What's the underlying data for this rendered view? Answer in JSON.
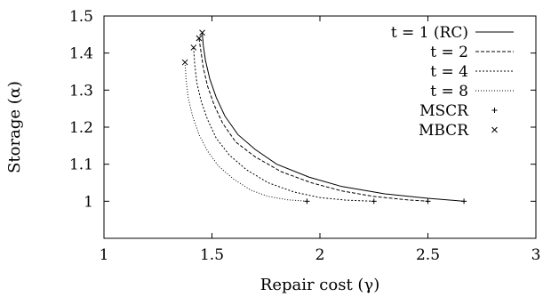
{
  "chart_data": {
    "type": "line",
    "xlabel": "Repair cost (γ)",
    "ylabel": "Storage (α)",
    "xlim": [
      1,
      3
    ],
    "ylim": [
      0.9,
      1.5
    ],
    "x_ticks": [
      1,
      1.5,
      2,
      2.5,
      3
    ],
    "x_tick_labels": [
      "1",
      "1.5",
      "2",
      "2.5",
      "3"
    ],
    "y_ticks": [
      1,
      1.1,
      1.2,
      1.3,
      1.4,
      1.5
    ],
    "y_tick_labels": [
      "1",
      "1.1",
      "1.2",
      "1.3",
      "1.4",
      "1.5"
    ],
    "grid": false,
    "legend_position": "top-right",
    "series": [
      {
        "name": "t = 1 (RC)",
        "style": "solid",
        "x": [
          1.455,
          1.46,
          1.47,
          1.49,
          1.52,
          1.56,
          1.62,
          1.7,
          1.8,
          1.95,
          2.1,
          2.3,
          2.5,
          2.667
        ],
        "y": [
          1.455,
          1.42,
          1.38,
          1.33,
          1.28,
          1.23,
          1.18,
          1.14,
          1.1,
          1.065,
          1.04,
          1.02,
          1.008,
          1.0
        ]
      },
      {
        "name": "t = 2",
        "style": "dashed",
        "x": [
          1.44,
          1.45,
          1.46,
          1.48,
          1.51,
          1.55,
          1.61,
          1.7,
          1.82,
          1.96,
          2.1,
          2.25,
          2.4,
          2.5
        ],
        "y": [
          1.44,
          1.4,
          1.36,
          1.31,
          1.26,
          1.21,
          1.16,
          1.12,
          1.08,
          1.05,
          1.028,
          1.013,
          1.004,
          1.0
        ]
      },
      {
        "name": "t = 4",
        "style": "dotted",
        "x": [
          1.415,
          1.42,
          1.43,
          1.45,
          1.48,
          1.52,
          1.58,
          1.66,
          1.76,
          1.88,
          2.0,
          2.12,
          2.25
        ],
        "y": [
          1.415,
          1.37,
          1.32,
          1.27,
          1.22,
          1.17,
          1.125,
          1.085,
          1.05,
          1.025,
          1.01,
          1.003,
          1.0
        ]
      },
      {
        "name": "t = 8",
        "style": "fine-dotted",
        "x": [
          1.375,
          1.38,
          1.39,
          1.41,
          1.44,
          1.48,
          1.53,
          1.6,
          1.68,
          1.76,
          1.85,
          1.94
        ],
        "y": [
          1.375,
          1.33,
          1.28,
          1.23,
          1.18,
          1.135,
          1.095,
          1.06,
          1.03,
          1.013,
          1.004,
          1.0
        ]
      }
    ],
    "points": [
      {
        "name": "MSCR",
        "marker": "+",
        "x": [
          1.94,
          2.25,
          2.5,
          2.667
        ],
        "y": [
          1.0,
          1.0,
          1.0,
          1.0
        ]
      },
      {
        "name": "MBCR",
        "marker": "x",
        "x": [
          1.375,
          1.415,
          1.44,
          1.455
        ],
        "y": [
          1.375,
          1.415,
          1.44,
          1.455
        ]
      }
    ],
    "colors": {
      "axis": "#000000",
      "line": "#000000"
    }
  }
}
